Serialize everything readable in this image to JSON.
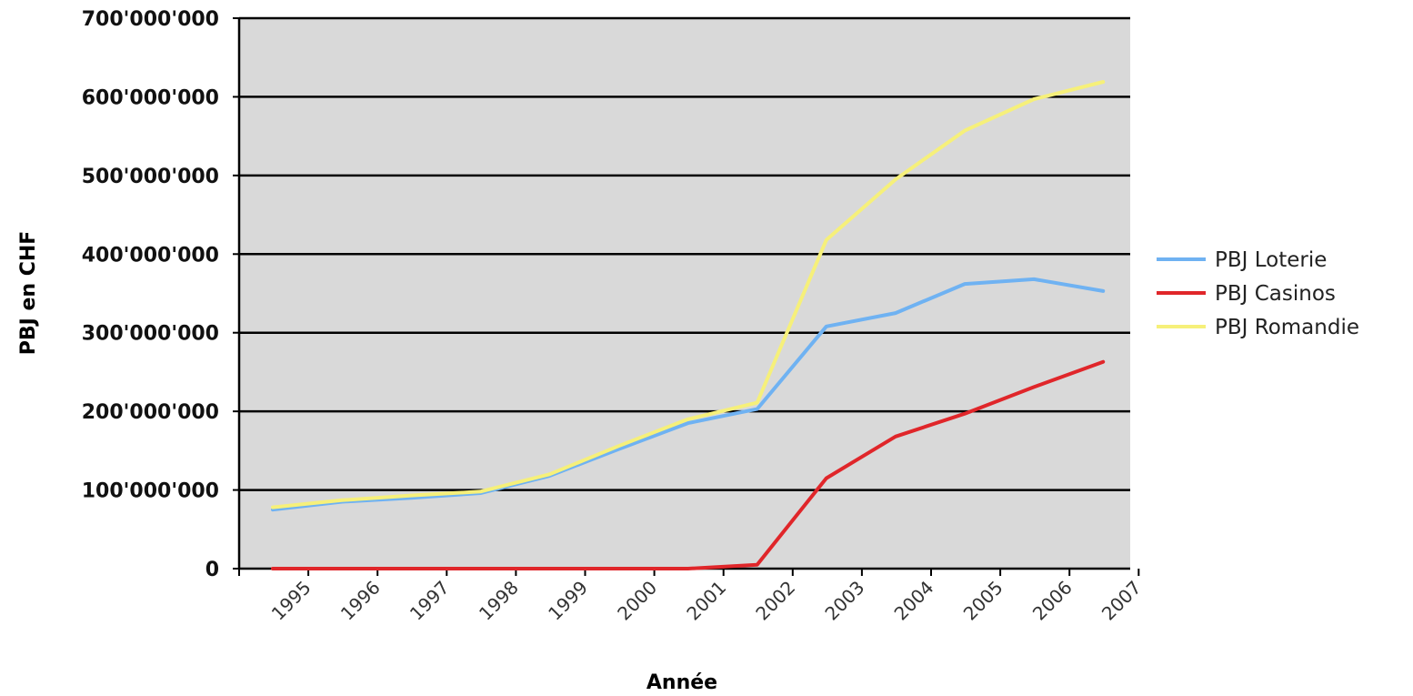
{
  "chart_data": {
    "type": "line",
    "title": "",
    "xlabel": "Année",
    "ylabel": "PBJ en CHF",
    "categories": [
      "1995",
      "1996",
      "1997",
      "1998",
      "1999",
      "2000",
      "2001",
      "2002",
      "2003",
      "2004",
      "2005",
      "2006",
      "2007"
    ],
    "y_ticks": [
      "0",
      "100'000'000",
      "200'000'000",
      "300'000'000",
      "400'000'000",
      "500'000'000",
      "600'000'000",
      "700'000'000"
    ],
    "ylim": [
      0,
      700000000
    ],
    "grid": true,
    "legend_position": "right",
    "plot_background": "#d9d9d9",
    "series": [
      {
        "name": "PBJ Loterie",
        "color": "#6fb2f2",
        "values": [
          75000000,
          85000000,
          90000000,
          96000000,
          118000000,
          152000000,
          185000000,
          203000000,
          308000000,
          325000000,
          362000000,
          368000000,
          353000000
        ]
      },
      {
        "name": "PBJ Casinos",
        "color": "#e0262a",
        "values": [
          0,
          0,
          0,
          0,
          0,
          0,
          0,
          5000000,
          115000000,
          168000000,
          197000000,
          231000000,
          263000000
        ]
      },
      {
        "name": "PBJ Romandie",
        "color": "#f6f07a",
        "values": [
          78000000,
          87000000,
          93000000,
          98000000,
          120000000,
          156000000,
          190000000,
          211000000,
          418000000,
          495000000,
          557000000,
          597000000,
          619000000
        ]
      }
    ]
  }
}
